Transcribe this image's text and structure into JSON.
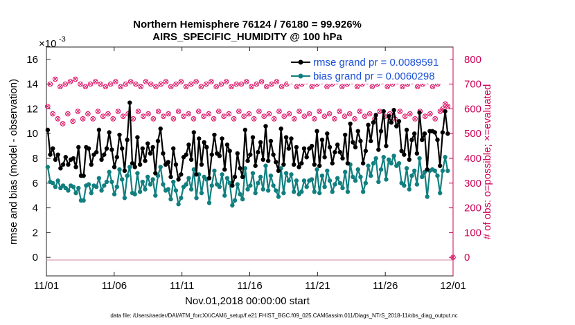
{
  "chart_data": {
    "type": "line",
    "title": "Northern Hemisphere 76124 / 76180 = 99.926%",
    "subtitle": "AIRS_SPECIFIC_HUMIDITY @ 100 hPa",
    "xlabel": "Nov.01,2018 00:00:00 start",
    "ylabel": "rmse and bias (model - observation)",
    "y2label": "# of obs: o=possible; ×=evaluated",
    "yexponent": "×10",
    "yexponent_power": "-3",
    "footnote": "data file: /Users/raeder/DAI/ATM_forcXX/CAM6_setup/f.e21.FHIST_BGC.f09_025.CAM6assim.011/Diags_NTrS_2018-11/obs_diag_output.nc",
    "xlim": [
      0,
      30
    ],
    "ylim": [
      -1.5,
      17
    ],
    "y2lim": [
      -75,
      850
    ],
    "xticks": [
      0,
      5,
      10,
      15,
      20,
      25,
      30
    ],
    "xticklabels": [
      "11/01",
      "11/06",
      "11/11",
      "11/16",
      "11/21",
      "11/26",
      "12/01"
    ],
    "yticks": [
      0,
      2,
      4,
      6,
      8,
      10,
      12,
      14,
      16
    ],
    "yticklabels": [
      "0",
      "2",
      "4",
      "6",
      "8",
      "10",
      "12",
      "14",
      "16"
    ],
    "y2ticks": [
      0,
      100,
      200,
      300,
      400,
      500,
      600,
      700,
      800
    ],
    "y2ticklabels": [
      "0",
      "100",
      "200",
      "300",
      "400",
      "500",
      "600",
      "700",
      "800"
    ],
    "legend_position": "top-right",
    "colors": {
      "rmse": "#000000",
      "bias": "#117f7f",
      "obs": "#dd1166",
      "zero_line": "#d9a0b0",
      "legend_text": "#1a4fd8",
      "right_axis": "#cc0055"
    },
    "series": [
      {
        "name": "rmse grand pr = 0.0089591",
        "key": "rmse",
        "axis": "left",
        "values": [
          10.3,
          8.3,
          8.8,
          7.9,
          8.3,
          7.2,
          7.5,
          8.1,
          7.5,
          7.9,
          8.0,
          7.3,
          8.9,
          6.6,
          6.6,
          8.9,
          8.8,
          7.5,
          8.3,
          8.5,
          10.3,
          7.9,
          8.3,
          8.8,
          10.1,
          8.7,
          7.3,
          8.1,
          9.9,
          8.8,
          7.0,
          9.5,
          12.5,
          7.6,
          7.3,
          9.7,
          7.5,
          8.8,
          7.8,
          9.2,
          8.4,
          8.9,
          6.8,
          9.4,
          10.4,
          8.4,
          7.5,
          7.7,
          6.5,
          8.8,
          7.5,
          6.3,
          6.7,
          8.1,
          8.3,
          9.1,
          7.9,
          10.1,
          6.7,
          9.6,
          7.5,
          9.3,
          8.9,
          6.4,
          8.3,
          9.9,
          8.4,
          8.2,
          9.6,
          7.1,
          9.1,
          8.6,
          5.8,
          6.5,
          8.4,
          7.2,
          6.5,
          10.3,
          7.8,
          8.3,
          9.7,
          7.4,
          8.5,
          9.3,
          7.9,
          10.6,
          7.8,
          9.4,
          8.3,
          7.7,
          7.0,
          10.4,
          7.5,
          9.7,
          8.8,
          9.6,
          7.5,
          8.9,
          7.3,
          7.6,
          8.8,
          8.1,
          8.8,
          9.0,
          7.5,
          10.2,
          7.4,
          9.5,
          8.1,
          10.0,
          8.9,
          7.6,
          8.5,
          9.1,
          8.5,
          8.0,
          9.9,
          7.6,
          10.8,
          9.3,
          8.9,
          10.2,
          9.4,
          7.6,
          8.6,
          10.7,
          9.4,
          10.9,
          11.5,
          8.7,
          10.2,
          11.8,
          9.0,
          11.4,
          10.9,
          11.9,
          10.6,
          11.0,
          8.6,
          8.3,
          10.3,
          7.9,
          9.5,
          10.0,
          8.4,
          11.7,
          9.5,
          10.0,
          7.1,
          10.2,
          10.2,
          10.1,
          9.5,
          7.4,
          10.1,
          11.8,
          10.0
        ]
      },
      {
        "name": "bias grand pr = 0.0060298",
        "key": "bias",
        "axis": "left",
        "values": [
          7.3,
          6.1,
          6.0,
          5.7,
          6.2,
          5.6,
          5.8,
          5.6,
          5.4,
          5.8,
          5.7,
          5.2,
          5.6,
          4.6,
          4.6,
          5.8,
          5.9,
          5.2,
          5.8,
          5.7,
          6.4,
          5.4,
          5.8,
          6.1,
          6.9,
          6.1,
          5.1,
          5.7,
          7.1,
          6.3,
          4.8,
          6.6,
          7.3,
          5.2,
          5.1,
          6.8,
          5.3,
          6.1,
          5.5,
          6.5,
          5.9,
          6.3,
          5.0,
          6.6,
          7.3,
          5.9,
          5.4,
          5.5,
          4.7,
          6.1,
          5.4,
          4.3,
          4.8,
          5.7,
          5.9,
          6.4,
          5.5,
          7.1,
          4.8,
          6.7,
          5.2,
          6.5,
          6.3,
          4.4,
          5.8,
          7.0,
          5.9,
          5.7,
          6.7,
          5.0,
          6.4,
          6.0,
          4.2,
          4.6,
          5.9,
          5.1,
          4.7,
          7.2,
          5.5,
          5.8,
          6.8,
          5.2,
          6.0,
          6.5,
          5.5,
          7.4,
          5.4,
          6.6,
          5.8,
          5.4,
          4.9,
          7.2,
          5.2,
          6.8,
          6.2,
          6.7,
          5.3,
          6.2,
          5.1,
          5.3,
          6.2,
          5.7,
          6.2,
          6.3,
          5.3,
          7.1,
          5.2,
          6.6,
          5.7,
          7.0,
          6.2,
          5.3,
          5.9,
          6.4,
          6.0,
          5.6,
          6.9,
          5.3,
          7.5,
          6.5,
          6.2,
          7.1,
          6.5,
          5.3,
          6.0,
          7.4,
          6.6,
          7.6,
          8.0,
          6.1,
          7.1,
          8.1,
          6.3,
          7.9,
          7.6,
          8.2,
          7.4,
          7.6,
          6.0,
          5.8,
          7.2,
          5.5,
          6.6,
          7.0,
          5.9,
          8.0,
          6.5,
          6.9,
          4.9,
          7.0,
          7.1,
          7.0,
          6.6,
          5.2,
          7.0,
          8.1,
          7.0
        ]
      },
      {
        "name": "# of obs possible",
        "key": "obs_possible",
        "axis": "right",
        "values": [
          610,
          700,
          580,
          720,
          560,
          690,
          540,
          700,
          580,
          710,
          550,
          720,
          590,
          700,
          560,
          690,
          580,
          700,
          560,
          710,
          590,
          700,
          570,
          690,
          580,
          700,
          560,
          710,
          590,
          690,
          570,
          700,
          580,
          710,
          560,
          700,
          590,
          690,
          570,
          710,
          580,
          700,
          560,
          690,
          590,
          700,
          570,
          710,
          580,
          690,
          560,
          700,
          590,
          710,
          570,
          690,
          580,
          700,
          560,
          710,
          590,
          690,
          570,
          700,
          580,
          710,
          560,
          690,
          590,
          700,
          570,
          710,
          580,
          690,
          560,
          700,
          590,
          700,
          570,
          710,
          580,
          690,
          560,
          700,
          590,
          710,
          570,
          690,
          580,
          700,
          560,
          710,
          590,
          690,
          570,
          700,
          580,
          710,
          560,
          690,
          590,
          700,
          570,
          710,
          580,
          690,
          560,
          700,
          590,
          710,
          570,
          690,
          580,
          700,
          560,
          710,
          590,
          690,
          570,
          700,
          580,
          710,
          560,
          690,
          590,
          700,
          570,
          710,
          580,
          690,
          560,
          700,
          590,
          710,
          570,
          690,
          580,
          700,
          560,
          710,
          590,
          690,
          570,
          700,
          580,
          710,
          560,
          690,
          590,
          700,
          570,
          710,
          580,
          690,
          560,
          700,
          590,
          600,
          620,
          610,
          0
        ]
      }
    ]
  }
}
